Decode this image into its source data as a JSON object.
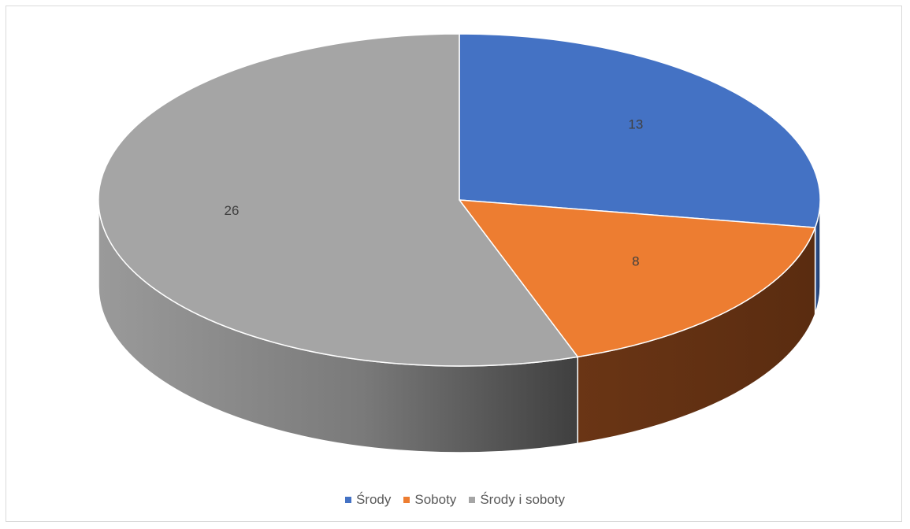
{
  "chart_data": {
    "type": "pie",
    "style": "3d",
    "categories": [
      "Środy",
      "Soboty",
      "Środy i soboty"
    ],
    "values": [
      13,
      8,
      26
    ],
    "colors": [
      "#4472c4",
      "#ed7d31",
      "#a5a5a5"
    ],
    "legend_position": "bottom",
    "data_labels": [
      "13",
      "8",
      "26"
    ]
  },
  "legend": {
    "items": [
      {
        "label": "Środy",
        "color": "#4472c4"
      },
      {
        "label": "Soboty",
        "color": "#ed7d31"
      },
      {
        "label": "Środy i soboty",
        "color": "#a5a5a5"
      }
    ]
  }
}
